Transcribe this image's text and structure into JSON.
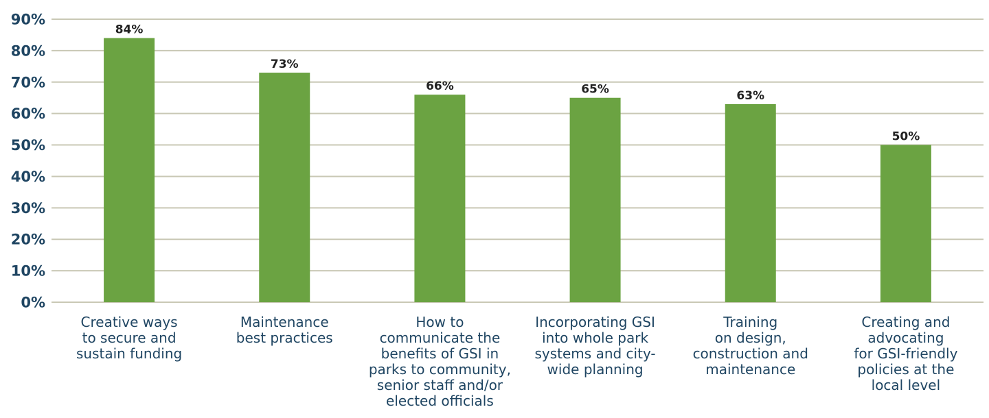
{
  "chart_data": {
    "type": "bar",
    "title": "",
    "xlabel": "",
    "ylabel": "",
    "ylim": [
      0,
      90
    ],
    "yticks": [
      "0%",
      "10%",
      "20%",
      "30%",
      "40%",
      "50%",
      "60%",
      "70%",
      "80%",
      "90%"
    ],
    "grid": true,
    "legend": "none",
    "categories": [
      "Creative ways to secure and sustain funding",
      "Maintenance best practices",
      "How to communicate the benefits of GSI in parks to community, senior staff and/or elected officials",
      "Incorporating GSI into whole park systems and city-wide planning",
      "Training on design, construction and maintenance",
      "Creating and advocating for GSI-friendly policies at the local level"
    ],
    "category_lines": [
      [
        "Creative ways",
        "to secure and",
        "sustain funding"
      ],
      [
        "Maintenance",
        "best practices"
      ],
      [
        "How to",
        "communicate the",
        "benefits of GSI in",
        "parks to community,",
        "senior staff and/or",
        "elected officials"
      ],
      [
        "Incorporating GSI",
        "into whole park",
        "systems and city-",
        "wide planning"
      ],
      [
        "Training",
        "on design,",
        "construction and",
        "maintenance"
      ],
      [
        "Creating and",
        "advocating",
        "for GSI-friendly",
        "policies at the",
        "local level"
      ]
    ],
    "values": [
      84,
      73,
      66,
      65,
      63,
      50
    ],
    "data_labels": [
      "84%",
      "73%",
      "66%",
      "65%",
      "63%",
      "50%"
    ]
  },
  "colors": {
    "bar": "#6ba342",
    "grid": "#c9c8b5",
    "axis_text": "#1f4562",
    "data_label": "#222222",
    "category_text": "#1f4562"
  }
}
